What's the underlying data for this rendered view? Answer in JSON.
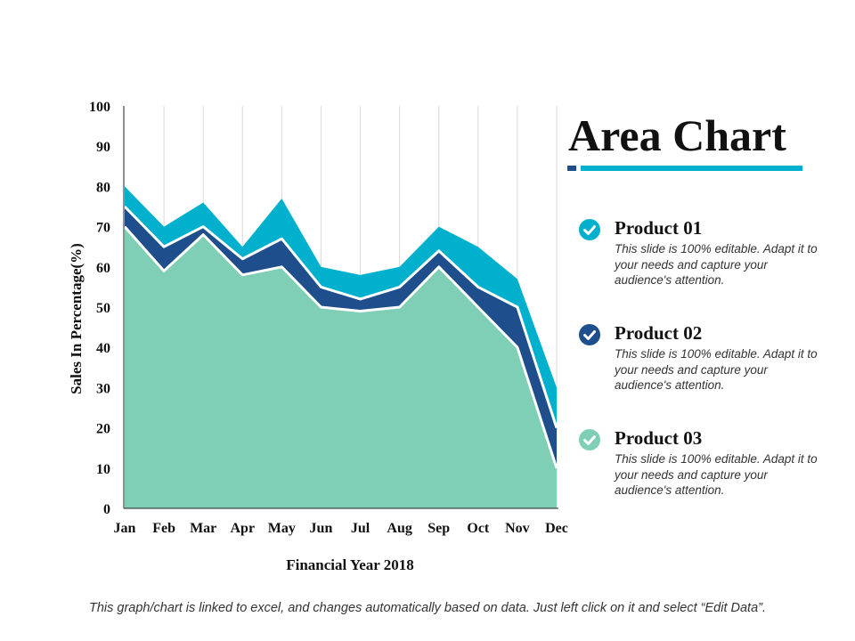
{
  "chart_data": {
    "type": "area",
    "stacked": true,
    "title": "Area Chart",
    "xlabel": "Financial Year 2018",
    "ylabel": "Sales In Percentage(%)",
    "ylim": [
      0,
      100
    ],
    "yticks": [
      0,
      10,
      20,
      30,
      40,
      50,
      60,
      70,
      80,
      90,
      100
    ],
    "categories": [
      "Jan",
      "Feb",
      "Mar",
      "Apr",
      "May",
      "Jun",
      "Jul",
      "Aug",
      "Sep",
      "Oct",
      "Nov",
      "Dec"
    ],
    "series": [
      {
        "name": "Product 03",
        "color": "#7ecfb5",
        "values": [
          70,
          59,
          68,
          58,
          60,
          50,
          49,
          50,
          60,
          50,
          40,
          10
        ]
      },
      {
        "name": "Product 02",
        "color": "#1f4e8c",
        "values": [
          5,
          6,
          2,
          4,
          7,
          5,
          3,
          5,
          4,
          5,
          10,
          10
        ]
      },
      {
        "name": "Product 01",
        "color": "#00b0cc",
        "values": [
          5,
          5,
          6,
          3,
          10,
          5,
          6,
          5,
          6,
          10,
          7,
          10
        ]
      }
    ]
  },
  "legend": {
    "items": [
      {
        "name": "Product 01",
        "desc": "This slide is 100% editable. Adapt it to your needs and capture your audience's attention.",
        "color": "#00b0cc"
      },
      {
        "name": "Product 02",
        "desc": "This slide is 100% editable. Adapt it to your needs and capture your audience's attention.",
        "color": "#1f4e8c"
      },
      {
        "name": "Product 03",
        "desc": "This slide is 100% editable. Adapt it to your needs and capture your audience's attention.",
        "color": "#7ecfb5"
      }
    ]
  },
  "footer": "This graph/chart is linked to excel, and changes automatically based on data. Just left click on it and select “Edit Data”."
}
